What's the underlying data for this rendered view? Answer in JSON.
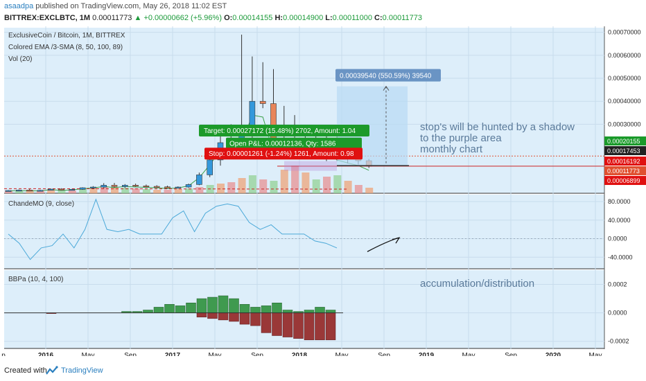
{
  "header": {
    "user": "asaadpa",
    "published": " published on TradingView.com, May 26, 2018 11:02 EST",
    "symbol": "BITTREX:EXCLBTC, 1M",
    "price": "0.00011773",
    "change": "+0.00000662 (+5.96%)",
    "o_label": "O:",
    "o_val": "0.00014155",
    "h_label": "H:",
    "h_val": "0.00014900",
    "l_label": "L:",
    "l_val": "0.00011000",
    "c_label": "C:",
    "c_val": "0.00011773"
  },
  "pane_main": {
    "title": "ExclusiveCoin / Bitcoin, 1M, BITTREX",
    "indicator1": "Colored EMA /3-SMA (8, 50, 100, 89)",
    "indicator2": "Vol (20)",
    "y_ticks": [
      "0.00070000",
      "0.00060000",
      "0.00050000",
      "0.00040000",
      "0.00030000"
    ],
    "price_tags": [
      {
        "text": "0.00020155",
        "color": "#1a9a2a"
      },
      {
        "text": "0.00017453",
        "color": "#222222"
      },
      {
        "text": "0.00016192",
        "color": "#e01010"
      },
      {
        "text": "0.00011773",
        "color": "#e05030"
      },
      {
        "text": "0.00006899",
        "color": "#e01010"
      }
    ],
    "measure_label": "0.00039540 (550.59%) 39540",
    "target_label": "Target: 0.00027172 (15.48%) 2702, Amount: 1.04",
    "open_pl_label": "Open P&L: 0.00012136, Qty: 1586",
    "stop_label": "Stop: 0.00001261 (-1.24%) 1261, Amount: 0.98",
    "note": [
      "stop's will be hunted by a shadow",
      "to the purple area",
      "monthly chart"
    ]
  },
  "pane_cmo": {
    "title": "ChandeMO (9, close)",
    "y_ticks": [
      "80.0000",
      "40.0000",
      "0.0000",
      "-40.0000"
    ]
  },
  "pane_bbp": {
    "title": "BBPa (10, 4, 100)",
    "note": "accumulation/distribution",
    "y_ticks": [
      "0.0002",
      "0.0000",
      "-0.0002"
    ]
  },
  "x_axis": {
    "labels": [
      "p",
      "2016",
      "May",
      "Sep",
      "2017",
      "May",
      "Sep",
      "2018",
      "May",
      "Sep",
      "2019",
      "May",
      "Sep",
      "2020",
      "May"
    ]
  },
  "footer": {
    "created": "Created with",
    "brand": "TradingView"
  },
  "colors": {
    "bg": "#ddeefa",
    "up": "#3498db",
    "down": "#e8855a",
    "cmo_line": "#4aa8d8",
    "bbp_up": "#3f9a4f",
    "bbp_down": "#9a3838"
  },
  "chart_data": {
    "type": "candlestick",
    "candles": [
      [
        1e-05,
        1.4e-05,
        8e-06,
        1.2e-05
      ],
      [
        1.2e-05,
        1.6e-05,
        1e-05,
        1.4e-05
      ],
      [
        1.4e-05,
        1.8e-05,
        1.1e-05,
        1.2e-05
      ],
      [
        1.2e-05,
        1.5e-05,
        1e-05,
        1.3e-05
      ],
      [
        1.3e-05,
        2e-05,
        1.2e-05,
        1.8e-05
      ],
      [
        1.8e-05,
        2.2e-05,
        1.3e-05,
        1.5e-05
      ],
      [
        1.5e-05,
        1.9e-05,
        1.2e-05,
        1.7e-05
      ],
      [
        1.7e-05,
        2.6e-05,
        1.5e-05,
        2.4e-05
      ],
      [
        2.4e-05,
        3.1e-05,
        2e-05,
        2.7e-05
      ],
      [
        2.7e-05,
        4.4e-05,
        2.2e-05,
        3.5e-05
      ],
      [
        3.5e-05,
        4.5e-05,
        2.5e-05,
        2.9e-05
      ],
      [
        2.9e-05,
        4e-05,
        2.3e-05,
        3.5e-05
      ],
      [
        3.5e-05,
        4.2e-05,
        2.8e-05,
        3.2e-05
      ],
      [
        3.2e-05,
        3.8e-05,
        2.5e-05,
        3e-05
      ],
      [
        3e-05,
        3.5e-05,
        2.4e-05,
        2.8e-05
      ],
      [
        2.8e-05,
        3.3e-05,
        2.2e-05,
        2.5e-05
      ],
      [
        2.5e-05,
        3e-05,
        2e-05,
        2.7e-05
      ],
      [
        2.7e-05,
        4.2e-05,
        2.4e-05,
        3.8e-05
      ],
      [
        3.8e-05,
        9e-05,
        3.5e-05,
        8e-05
      ],
      [
        8e-05,
        0.000185,
        7e-05,
        0.000145
      ],
      [
        0.000145,
        0.000252,
        0.00012,
        0.00022
      ],
      [
        0.00022,
        0.0003,
        0.00017,
        0.00021
      ],
      [
        0.00021,
        0.00069,
        0.00019,
        0.00025
      ],
      [
        0.00025,
        0.000595,
        0.00022,
        0.0004
      ],
      [
        0.0004,
        0.00057,
        0.00037,
        0.00039
      ],
      [
        0.00039,
        0.00054,
        0.00018,
        0.00021
      ],
      [
        0.00021,
        0.00038,
        0.00019,
        0.0002
      ],
      [
        0.0002,
        0.00034,
        0.00018,
        0.00023
      ],
      [
        0.00023,
        0.00027,
        0.00017,
        0.00022
      ],
      [
        0.00022,
        0.00026,
        0.00016,
        0.00019
      ],
      [
        0.00019,
        0.00027,
        0.00014,
        0.00022
      ],
      [
        0.00022,
        0.00025,
        0.00014,
        0.00017
      ],
      [
        0.00017,
        0.0002,
        0.00013,
        0.000155
      ],
      [
        0.000155,
        0.00017,
        0.000125,
        0.0001415
      ],
      [
        0.0001415,
        0.000149,
        0.00011,
        0.0001177
      ]
    ],
    "cmo": [
      10,
      -10,
      -45,
      -20,
      -15,
      10,
      -20,
      20,
      85,
      20,
      15,
      20,
      10,
      10,
      10,
      45,
      60,
      15,
      55,
      70,
      75,
      70,
      35,
      20,
      30,
      10,
      10,
      10,
      -5,
      -10,
      -20
    ],
    "bbp": [
      0,
      0,
      0,
      0,
      -5e-06,
      0,
      0,
      0,
      0,
      0,
      0,
      1e-05,
      1e-05,
      2e-05,
      4e-05,
      6e-05,
      5e-05,
      7e-05,
      0.0001,
      0.00011,
      0.00012,
      0.0001,
      6e-05,
      4e-05,
      5e-05,
      7e-05,
      2e-05,
      1e-05,
      2e-05,
      4e-05,
      2e-05
    ],
    "bbp_neg": [
      0,
      0,
      0,
      0,
      0,
      0,
      0,
      0,
      0,
      0,
      0,
      0,
      0,
      0,
      0,
      0,
      0,
      0,
      -3e-05,
      -4e-05,
      -5e-05,
      -6e-05,
      -8e-05,
      -9e-05,
      -0.00014,
      -0.00016,
      -0.00017,
      -0.00018,
      -0.00019,
      -0.00019,
      -0.00019
    ]
  }
}
